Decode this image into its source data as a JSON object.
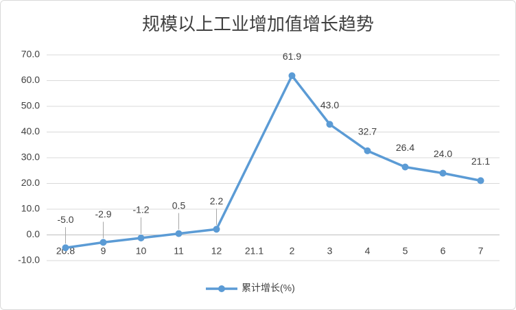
{
  "chart_data": {
    "type": "line",
    "title": "规模以上工业增加值增长趋势",
    "categories": [
      "20.8",
      "9",
      "10",
      "11",
      "12",
      "21.1",
      "2",
      "3",
      "4",
      "5",
      "6",
      "7"
    ],
    "series": [
      {
        "name": "累计增长(%)",
        "color": "#5b9bd5",
        "values": [
          -5.0,
          -2.9,
          -1.2,
          0.5,
          2.2,
          null,
          61.9,
          43.0,
          32.7,
          26.4,
          24.0,
          21.1
        ],
        "value_labels": [
          "-5.0",
          "-2.9",
          "-1.2",
          "0.5",
          "2.2",
          null,
          "61.9",
          "43.0",
          "32.7",
          "26.4",
          "24.0",
          "21.1"
        ]
      }
    ],
    "ylim": [
      -10,
      70
    ],
    "yticks": [
      {
        "value": -10,
        "label": "-10.0"
      },
      {
        "value": 0,
        "label": "0.0"
      },
      {
        "value": 10,
        "label": "10.0"
      },
      {
        "value": 20,
        "label": "20.0"
      },
      {
        "value": 30,
        "label": "30.0"
      },
      {
        "value": 40,
        "label": "40.0"
      },
      {
        "value": 50,
        "label": "50.0"
      },
      {
        "value": 60,
        "label": "60.0"
      },
      {
        "value": 70,
        "label": "70.0"
      }
    ],
    "grid": true,
    "legend": "bottom"
  }
}
